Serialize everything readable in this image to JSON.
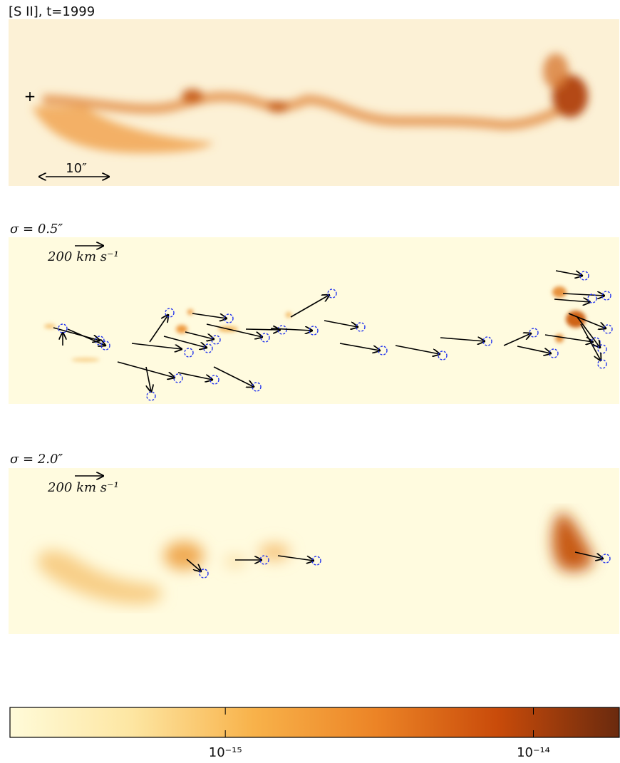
{
  "panels": [
    {
      "title": "[S II], t=1999",
      "scale_label": "10″"
    },
    {
      "title": "σ = 0.5″",
      "scale_label": "200 km s⁻¹"
    },
    {
      "title": "σ = 2.0″",
      "scale_label": "200 km s⁻¹"
    }
  ],
  "colorbar": {
    "scale": "log",
    "lim": [
      2e-16,
      1.9e-14
    ],
    "ticks": [
      {
        "value": 1e-15,
        "label": "10⁻¹⁵"
      },
      {
        "value": 1e-14,
        "label": "10⁻¹⁴"
      }
    ],
    "colors": [
      "#fffbd9",
      "#fde6a2",
      "#f8b24a",
      "#ec8426",
      "#c94b0a",
      "#6a2a0e"
    ]
  }
}
